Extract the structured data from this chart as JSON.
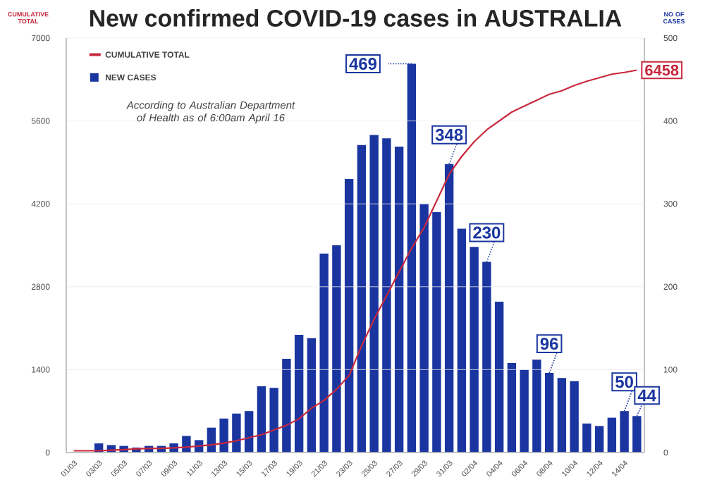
{
  "chart_data": {
    "type": "bar",
    "title": "New confirmed COVID-19 cases in AUSTRALIA",
    "ylabel": "CUMULATIVE TOTAL",
    "y2label": "NO OF CASES",
    "annotations": [
      "According to Australian Department of Health as of 6:00am April 16"
    ],
    "categories": [
      "01/03",
      null,
      "03/03",
      null,
      "05/03",
      null,
      "07/03",
      null,
      "09/03",
      null,
      "11/03",
      null,
      "13/03",
      null,
      "15/03",
      null,
      "17/03",
      null,
      "19/03",
      null,
      "21/03",
      null,
      "23/03",
      null,
      "25/03",
      null,
      "27/03",
      null,
      "29/03",
      null,
      "31/03",
      null,
      "02/04",
      null,
      "04/04",
      null,
      "06/04",
      null,
      "08/04",
      null,
      "10/04",
      null,
      "12/04",
      null,
      "14/04",
      null
    ],
    "series": [
      {
        "name": "CUMULATIVE TOTAL",
        "type": "line",
        "color": "#c8283c",
        "values": [
          30,
          30,
          30,
          40,
          50,
          60,
          70,
          70,
          80,
          90,
          110,
          130,
          160,
          200,
          250,
          300,
          380,
          460,
          570,
          750,
          880,
          1070,
          1300,
          1800,
          2250,
          2650,
          3050,
          3450,
          3800,
          4250,
          4700,
          5000,
          5250,
          5450,
          5600,
          5750,
          5850,
          5950,
          6050,
          6110,
          6200,
          6270,
          6330,
          6390,
          6420,
          6458
        ],
        "value_labels": [
          null,
          null,
          null,
          null,
          null,
          null,
          null,
          null,
          null,
          null,
          null,
          null,
          null,
          null,
          null,
          null,
          null,
          null,
          null,
          null,
          null,
          null,
          null,
          null,
          null,
          null,
          null,
          null,
          null,
          null,
          null,
          null,
          null,
          null,
          null,
          null,
          null,
          null,
          null,
          null,
          null,
          null,
          null,
          null,
          null,
          "6458"
        ]
      },
      {
        "name": "NEW CASES",
        "axis": "y2",
        "color": "#1a35a0",
        "values": [
          null,
          0,
          11,
          9,
          8,
          6,
          8,
          8,
          11,
          20,
          15,
          30,
          41,
          47,
          50,
          80,
          78,
          113,
          142,
          138,
          240,
          250,
          330,
          371,
          383,
          379,
          369,
          469,
          300,
          290,
          348,
          270,
          248,
          230,
          182,
          108,
          100,
          112,
          96,
          90,
          86,
          35,
          32,
          42,
          50,
          44
        ],
        "value_labels": [
          null,
          null,
          null,
          null,
          null,
          null,
          null,
          null,
          null,
          null,
          null,
          null,
          null,
          null,
          null,
          null,
          null,
          null,
          null,
          null,
          null,
          null,
          null,
          null,
          null,
          null,
          null,
          "469",
          null,
          null,
          "348",
          null,
          null,
          "230",
          null,
          null,
          null,
          null,
          "96",
          null,
          null,
          null,
          null,
          null,
          "50",
          "44"
        ]
      }
    ],
    "ylim": [
      0,
      7000
    ],
    "yticks": [
      0,
      1400,
      2800,
      4200,
      5600,
      7000
    ],
    "y2lim": [
      0,
      500
    ],
    "y2ticks": [
      0,
      100,
      200,
      300,
      400,
      500
    ],
    "grid": "y",
    "legend": "top left"
  }
}
